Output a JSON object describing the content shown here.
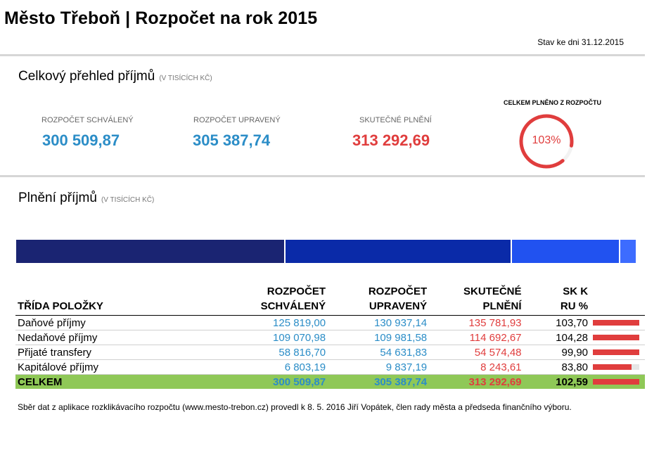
{
  "header": {
    "title": "Město Třeboň | Rozpočet na rok 2015",
    "status_date": "Stav ke dni 31.12.2015"
  },
  "overview": {
    "title": "Celkový přehled příjmů",
    "unit": "(V TISÍCÍCH KČ)",
    "approved_label": "ROZPOČET SCHVÁLENÝ",
    "approved_value": "300 509,87",
    "modified_label": "ROZPOČET UPRAVENÝ",
    "modified_value": "305 387,74",
    "actual_label": "SKUTEČNÉ PLNĚNÍ",
    "actual_value": "313 292,69",
    "gauge_title": "CELKEM PLNĚNO Z ROZPOČTU",
    "gauge_text": "103%",
    "gauge_percent": 103
  },
  "fulfillment": {
    "title": "Plnění příjmů",
    "unit": "(V TISÍCÍCH KČ)",
    "segments": [
      {
        "name": "Daňové příjmy",
        "value": 135781.93,
        "color": "#1a2472"
      },
      {
        "name": "Nedaňové příjmy",
        "value": 114692.67,
        "color": "#0a2aa8"
      },
      {
        "name": "Přijaté transfery",
        "value": 54574.48,
        "color": "#2152f0"
      },
      {
        "name": "Kapitálové příjmy",
        "value": 8243.61,
        "color": "#3d6cff"
      }
    ]
  },
  "table": {
    "headers": {
      "class": "TŘÍDA POLOŽKY",
      "approved_l1": "ROZPOČET",
      "approved_l2": "SCHVÁLENÝ",
      "modified_l1": "ROZPOČET",
      "modified_l2": "UPRAVENÝ",
      "actual_l1": "SKUTEČNÉ",
      "actual_l2": "PLNĚNÍ",
      "pct_l1": "SK K",
      "pct_l2": "RU %"
    },
    "rows": [
      {
        "name": "Daňové příjmy",
        "approved": "125 819,00",
        "modified": "130 937,14",
        "actual": "135 781,93",
        "pct": "103,70",
        "pct_value": 103.7
      },
      {
        "name": "Nedaňové příjmy",
        "approved": "109 070,98",
        "modified": "109 981,58",
        "actual": "114 692,67",
        "pct": "104,28",
        "pct_value": 104.28
      },
      {
        "name": "Přijaté transfery",
        "approved": "58 816,70",
        "modified": "54 631,83",
        "actual": "54 574,48",
        "pct": "99,90",
        "pct_value": 99.9
      },
      {
        "name": "Kapitálové příjmy",
        "approved": "6 803,19",
        "modified": "9 837,19",
        "actual": "8 243,61",
        "pct": "83,80",
        "pct_value": 83.8
      }
    ],
    "total": {
      "name": "CELKEM",
      "approved": "300 509,87",
      "modified": "305 387,74",
      "actual": "313 292,69",
      "pct": "102,59",
      "pct_value": 102.59
    }
  },
  "footer": {
    "text": "Sběr dat z aplikace rozklikávacího rozpočtu (www.mesto-trebon.cz) provedl k 8. 5. 2016 Jiří Vopátek, člen rady města a předseda finančního výboru."
  },
  "colors": {
    "accent_blue": "#2b8dc7",
    "accent_red": "#e03d3d",
    "total_green": "#8fc857"
  }
}
